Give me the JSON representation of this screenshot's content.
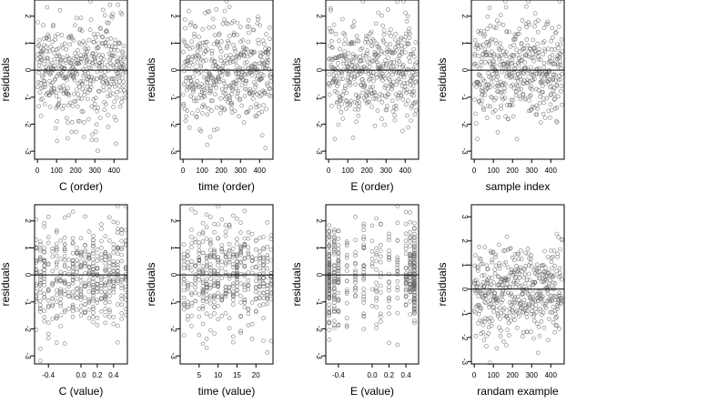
{
  "chart_data": [
    {
      "type": "scatter",
      "ylabel": "residuals",
      "xlabel": "C (order)",
      "xlim": [
        -15,
        470
      ],
      "ylim": [
        -3.3,
        2.6
      ],
      "xticks": [
        0,
        100,
        200,
        300,
        400
      ],
      "yticks": [
        -3,
        -2,
        -1,
        0,
        1,
        2
      ],
      "xtick_labels": [
        "0",
        "100",
        "200",
        "300",
        "400"
      ],
      "ytick_labels": [
        "-3",
        "-2",
        "-1",
        "0",
        "1",
        "2"
      ],
      "reference_line_y": 0,
      "point_style": "open circle",
      "n_points": 460,
      "x_distribution": "index",
      "residual_distribution": "normal"
    },
    {
      "type": "scatter",
      "ylabel": "residuals",
      "xlabel": "time (order)",
      "xlim": [
        -15,
        470
      ],
      "ylim": [
        -3.3,
        2.6
      ],
      "xticks": [
        0,
        100,
        200,
        300,
        400
      ],
      "yticks": [
        -3,
        -2,
        -1,
        0,
        1,
        2
      ],
      "xtick_labels": [
        "0",
        "100",
        "200",
        "300",
        "400"
      ],
      "ytick_labels": [
        "-3",
        "-2",
        "-1",
        "0",
        "1",
        "2"
      ],
      "reference_line_y": 0,
      "point_style": "open circle",
      "n_points": 460,
      "x_distribution": "index",
      "residual_distribution": "normal"
    },
    {
      "type": "scatter",
      "ylabel": "residuals",
      "xlabel": "E (order)",
      "xlim": [
        -15,
        470
      ],
      "ylim": [
        -3.3,
        2.6
      ],
      "xticks": [
        0,
        100,
        200,
        300,
        400
      ],
      "yticks": [
        -3,
        -2,
        -1,
        0,
        1,
        2
      ],
      "xtick_labels": [
        "0",
        "100",
        "200",
        "300",
        "400"
      ],
      "ytick_labels": [
        "-3",
        "-2",
        "-1",
        "0",
        "1",
        "2"
      ],
      "reference_line_y": 0,
      "point_style": "open circle",
      "n_points": 460,
      "x_distribution": "index",
      "residual_distribution": "normal"
    },
    {
      "type": "scatter",
      "ylabel": "residuals",
      "xlabel": "sample index",
      "xlim": [
        -15,
        470
      ],
      "ylim": [
        -3.3,
        2.6
      ],
      "xticks": [
        0,
        100,
        200,
        300,
        400
      ],
      "yticks": [
        -3,
        -2,
        -1,
        0,
        1,
        2
      ],
      "xtick_labels": [
        "0",
        "100",
        "200",
        "300",
        "400"
      ],
      "ytick_labels": [
        "-3",
        "-2",
        "-1",
        "0",
        "1",
        "2"
      ],
      "reference_line_y": 0,
      "point_style": "open circle",
      "n_points": 460,
      "x_distribution": "index",
      "residual_distribution": "normal"
    },
    {
      "type": "scatter",
      "ylabel": "residuals",
      "xlabel": "C (value)",
      "xlim": [
        -0.57,
        0.57
      ],
      "ylim": [
        -3.3,
        2.6
      ],
      "xticks": [
        -0.4,
        0.0,
        0.2,
        0.4
      ],
      "yticks": [
        -3,
        -2,
        -1,
        0,
        1,
        2
      ],
      "xtick_labels": [
        "-0.4",
        "0.0",
        "0.2",
        "0.4"
      ],
      "ytick_labels": [
        "-3",
        "-2",
        "-1",
        "0",
        "1",
        "2"
      ],
      "reference_line_y": 0,
      "point_style": "open circle",
      "n_points": 460,
      "x_distribution": "discrete",
      "x_levels": [
        -0.55,
        -0.5,
        -0.45,
        -0.4,
        -0.35,
        -0.3,
        -0.25,
        -0.2,
        -0.15,
        -0.1,
        -0.05,
        0.0,
        0.05,
        0.1,
        0.15,
        0.2,
        0.25,
        0.3,
        0.35,
        0.4,
        0.45,
        0.5,
        0.55
      ],
      "residual_distribution": "normal"
    },
    {
      "type": "scatter",
      "ylabel": "residuals",
      "xlabel": "time (value)",
      "xlim": [
        0,
        24.5
      ],
      "ylim": [
        -3.3,
        2.6
      ],
      "xticks": [
        5,
        10,
        15,
        20
      ],
      "yticks": [
        -3,
        -2,
        -1,
        0,
        1,
        2
      ],
      "xtick_labels": [
        "5",
        "10",
        "15",
        "20"
      ],
      "ytick_labels": [
        "-3",
        "-2",
        "-1",
        "0",
        "1",
        "2"
      ],
      "reference_line_y": 0,
      "point_style": "open circle",
      "n_points": 460,
      "x_distribution": "discrete",
      "x_levels": [
        1,
        2,
        3,
        4,
        5,
        6,
        7,
        8,
        9,
        10,
        11,
        12,
        13,
        14,
        15,
        16,
        17,
        18,
        19,
        20,
        21,
        22,
        23,
        24
      ],
      "residual_distribution": "normal"
    },
    {
      "type": "scatter",
      "ylabel": "residuals",
      "xlabel": "E (value)",
      "xlim": [
        -0.55,
        0.55
      ],
      "ylim": [
        -3.3,
        2.6
      ],
      "xticks": [
        -0.4,
        0.0,
        0.2,
        0.4
      ],
      "yticks": [
        -3,
        -2,
        -1,
        0,
        1,
        2
      ],
      "xtick_labels": [
        "-0.4",
        "0.0",
        "0.2",
        "0.4"
      ],
      "ytick_labels": [
        "-3",
        "-2",
        "-1",
        "0",
        "1",
        "2"
      ],
      "reference_line_y": 0,
      "point_style": "open circle",
      "n_points": 460,
      "x_distribution": "discrete",
      "x_levels": [
        -0.51,
        -0.45,
        -0.4,
        -0.3,
        -0.2,
        -0.1,
        0.0,
        0.05,
        0.1,
        0.2,
        0.3,
        0.4,
        0.45,
        0.5
      ],
      "x_weights": [
        45,
        20,
        15,
        8,
        8,
        8,
        6,
        6,
        8,
        8,
        8,
        12,
        20,
        45
      ],
      "residual_distribution": "normal"
    },
    {
      "type": "scatter",
      "ylabel": "residuals",
      "xlabel": "randam example",
      "xlim": [
        -15,
        470
      ],
      "ylim": [
        -3.1,
        3.5
      ],
      "xticks": [
        0,
        100,
        200,
        300,
        400
      ],
      "yticks": [
        -3,
        -2,
        -1,
        0,
        1,
        2,
        3
      ],
      "xtick_labels": [
        "0",
        "100",
        "200",
        "300",
        "400"
      ],
      "ytick_labels": [
        "-3",
        "-2",
        "-1",
        "0",
        "1",
        "2",
        "3"
      ],
      "reference_line_y": 0,
      "point_style": "open circle",
      "n_points": 460,
      "x_distribution": "index",
      "residual_distribution": "normal"
    }
  ],
  "style": {
    "point_color": "#666666",
    "line_color": "#000000",
    "frame_color": "#000000"
  }
}
